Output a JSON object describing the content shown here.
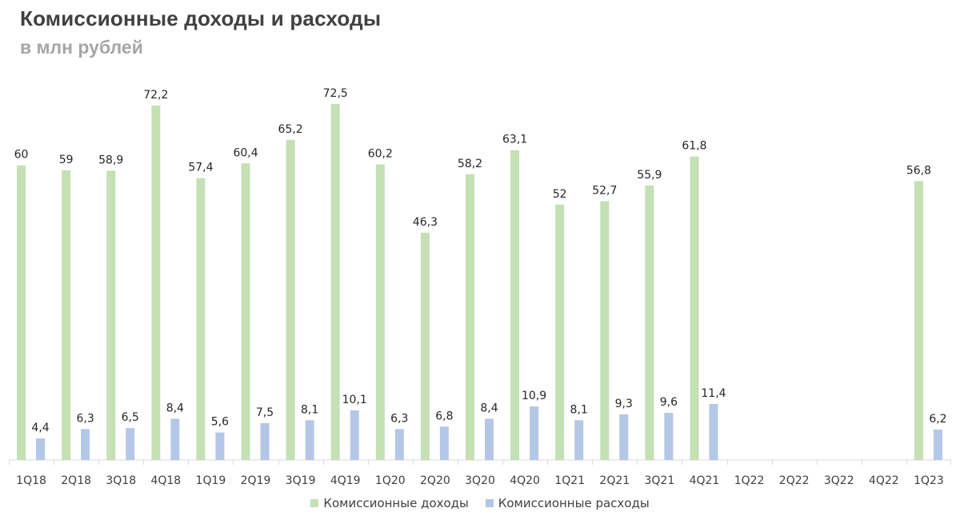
{
  "title": "Комиссионные доходы и расходы",
  "subtitle": "в млн рублей",
  "colors": {
    "income": "#c5e0b4",
    "expense": "#b4c7e7",
    "axis": "#d9d9d9"
  },
  "chart_data": {
    "type": "bar",
    "categories": [
      "1Q18",
      "2Q18",
      "3Q18",
      "4Q18",
      "1Q19",
      "2Q19",
      "3Q19",
      "4Q19",
      "1Q20",
      "2Q20",
      "3Q20",
      "4Q20",
      "1Q21",
      "2Q21",
      "3Q21",
      "4Q21",
      "1Q22",
      "2Q22",
      "3Q22",
      "4Q22",
      "1Q23"
    ],
    "series": [
      {
        "name": "Комиссионные доходы",
        "values": [
          60,
          59,
          58.9,
          72.2,
          57.4,
          60.4,
          65.2,
          72.5,
          60.2,
          46.3,
          58.2,
          63.1,
          52,
          52.7,
          55.9,
          61.8,
          null,
          null,
          null,
          null,
          56.8
        ],
        "labels": [
          "60",
          "59",
          "58,9",
          "72,2",
          "57,4",
          "60,4",
          "65,2",
          "72,5",
          "60,2",
          "46,3",
          "58,2",
          "63,1",
          "52",
          "52,7",
          "55,9",
          "61,8",
          "",
          "",
          "",
          "",
          "56,8"
        ]
      },
      {
        "name": "Комиссионные расходы",
        "values": [
          4.4,
          6.3,
          6.5,
          8.4,
          5.6,
          7.5,
          8.1,
          10.1,
          6.3,
          6.8,
          8.4,
          10.9,
          8.1,
          9.3,
          9.6,
          11.4,
          null,
          null,
          null,
          null,
          6.2
        ],
        "labels": [
          "4,4",
          "6,3",
          "6,5",
          "8,4",
          "5,6",
          "7,5",
          "8,1",
          "10,1",
          "6,3",
          "6,8",
          "8,4",
          "10,9",
          "8,1",
          "9,3",
          "9,6",
          "11,4",
          "",
          "",
          "",
          "",
          "6,2"
        ]
      }
    ],
    "ylim": [
      0,
      80
    ],
    "grid": false,
    "legend_position": "bottom"
  }
}
